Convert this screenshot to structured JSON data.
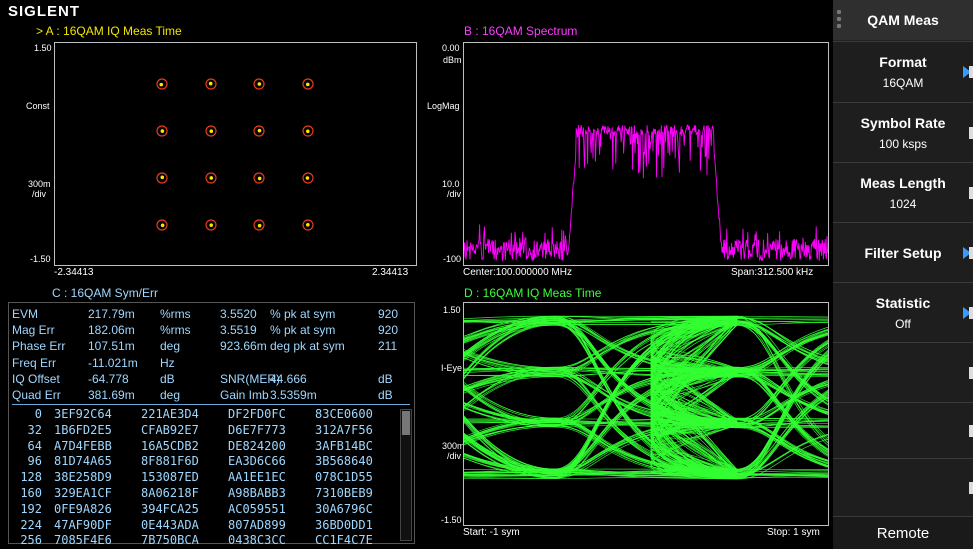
{
  "brand": "SIGLENT",
  "panelA": {
    "title": "> A :  16QAM  IQ Meas Time",
    "ytop": "1.50",
    "ybottom": "-1.50",
    "ylabel": "Const",
    "scale": "300m",
    "scale_unit": "/div",
    "xleft": "-2.34413",
    "xright": "2.34413",
    "symbol_color": "#ffe600",
    "marker_color": "#e63a1f"
  },
  "panelB": {
    "title": "B :  16QAM  Spectrum",
    "ytop": "0.00",
    "yunit": "dBm",
    "ylabel": "LogMag",
    "scale": "10.0",
    "scale_unit": "/div",
    "ybottom": "-100",
    "center": "Center:100.000000 MHz",
    "span": "Span:312.500 kHz",
    "trace_color": "#ff00ff"
  },
  "panelC": {
    "title": "C :  16QAM  Sym/Err",
    "rows": [
      {
        "name": "EVM",
        "val": "217.79m",
        "unit": "%rms",
        "val2": "3.5520",
        "name2": "% pk at sym",
        "val3": "920"
      },
      {
        "name": "Mag Err",
        "val": "182.06m",
        "unit": "%rms",
        "val2": "3.5519",
        "name2": "% pk at sym",
        "val3": "920"
      },
      {
        "name": "Phase Err",
        "val": "107.51m",
        "unit": "deg",
        "val2": "923.66m",
        "name2": "deg pk at sym",
        "val3": "211"
      },
      {
        "name": "Freq Err",
        "val": "-11.021m",
        "unit": "Hz",
        "val2": "",
        "name2": "",
        "val3": ""
      },
      {
        "name": "IQ Offset",
        "val": "-64.778",
        "unit": "dB",
        "val2": "SNR(MER)",
        "name2": "44.666",
        "val3": "dB"
      },
      {
        "name": "Quad Err",
        "val": "381.69m",
        "unit": "deg",
        "val2": "Gain Imb",
        "name2": "3.5359m",
        "val3": "dB"
      }
    ],
    "hex": [
      {
        "idx": "0",
        "c": [
          "3EF92C64",
          "221AE3D4",
          "DF2FD0FC",
          "83CE0600"
        ]
      },
      {
        "idx": "32",
        "c": [
          "1B6FD2E5",
          "CFAB92E7",
          "D6E7F773",
          "312A7F56"
        ]
      },
      {
        "idx": "64",
        "c": [
          "A7D4FEBB",
          "16A5CDB2",
          "DE824200",
          "3AFB14BC"
        ]
      },
      {
        "idx": "96",
        "c": [
          "81D74A65",
          "8F881F6D",
          "EA3D6C66",
          "3B568640"
        ]
      },
      {
        "idx": "128",
        "c": [
          "38E258D9",
          "153087ED",
          "AA1EE1EC",
          "078C1D55"
        ]
      },
      {
        "idx": "160",
        "c": [
          "329EA1CF",
          "8A06218F",
          "A98BABB3",
          "7310BEB9"
        ]
      },
      {
        "idx": "192",
        "c": [
          "0FE9A826",
          "394FCA25",
          "AC059551",
          "30A6796C"
        ]
      },
      {
        "idx": "224",
        "c": [
          "47AF90DF",
          "0E443ADA",
          "807AD899",
          "36BD0DD1"
        ]
      },
      {
        "idx": "256",
        "c": [
          "7085F4E6",
          "7B750BCA",
          "0438C3CC",
          "CC1F4C7E"
        ]
      }
    ]
  },
  "panelD": {
    "title": "D :  16QAM  IQ Meas Time",
    "ytop": "1.50",
    "ybottom": "-1.50",
    "ylabel": "I-Eye",
    "scale": "300m",
    "scale_unit": "/div",
    "start": "Start: -1 sym",
    "stop": "Stop: 1 sym",
    "trace_color": "#33ff33"
  },
  "menu": {
    "title": "QAM Meas",
    "items": [
      {
        "label": "Format",
        "value": "16QAM",
        "arrow": true
      },
      {
        "label": "Symbol Rate",
        "value": "100 ksps",
        "arrow": false
      },
      {
        "label": "Meas Length",
        "value": "1024",
        "arrow": false
      },
      {
        "label": "Filter Setup",
        "value": "",
        "arrow": true
      },
      {
        "label": "Statistic",
        "value": "Off",
        "arrow": true
      },
      {
        "label": "",
        "value": "",
        "arrow": false
      },
      {
        "label": "",
        "value": "",
        "arrow": false
      },
      {
        "label": "",
        "value": "",
        "arrow": false
      }
    ],
    "remote": "Remote"
  }
}
